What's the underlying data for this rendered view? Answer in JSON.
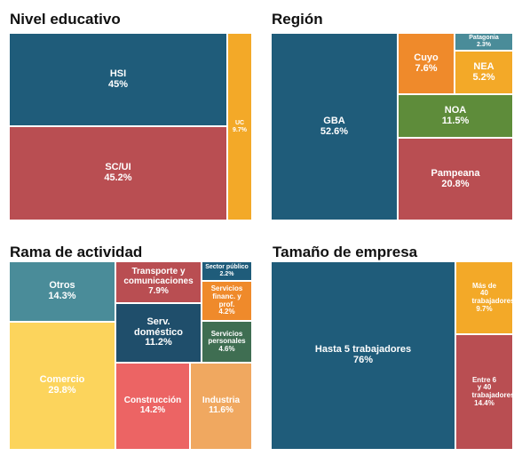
{
  "chart_data": [
    {
      "type": "treemap",
      "title": "Nivel educativo",
      "items": [
        {
          "label": "HSI",
          "value": 45,
          "display": "45%",
          "color": "#1f5c7a"
        },
        {
          "label": "SC/UI",
          "value": 45.2,
          "display": "45.2%",
          "color": "#b94e52"
        },
        {
          "label": "UC",
          "value": 9.7,
          "display": "9.7%",
          "color": "#f3a928"
        }
      ]
    },
    {
      "type": "treemap",
      "title": "Región",
      "items": [
        {
          "label": "GBA",
          "value": 52.6,
          "display": "52.6%",
          "color": "#1f5c7a"
        },
        {
          "label": "Cuyo",
          "value": 7.6,
          "display": "7.6%",
          "color": "#ef8a2b"
        },
        {
          "label": "Patagonia",
          "value": 2.3,
          "display": "2.3%",
          "color": "#4a8c99"
        },
        {
          "label": "NEA",
          "value": 5.2,
          "display": "5.2%",
          "color": "#f3a928"
        },
        {
          "label": "NOA",
          "value": 11.5,
          "display": "11.5%",
          "color": "#5e8c3a"
        },
        {
          "label": "Pampeana",
          "value": 20.8,
          "display": "20.8%",
          "color": "#b94e52"
        }
      ]
    },
    {
      "type": "treemap",
      "title": "Rama de actividad",
      "items": [
        {
          "label": "Otros",
          "value": 14.3,
          "display": "14.3%",
          "color": "#4a8c99"
        },
        {
          "label": "Comercio",
          "value": 29.8,
          "display": "29.8%",
          "color": "#fcd45c"
        },
        {
          "label": "Transporte y comunicaciones",
          "value": 7.9,
          "display": "7.9%",
          "color": "#b94e52"
        },
        {
          "label": "Serv. doméstico",
          "value": 11.2,
          "display": "11.2%",
          "color": "#1f4e6b"
        },
        {
          "label": "Construcción",
          "value": 14.2,
          "display": "14.2%",
          "color": "#ec6464"
        },
        {
          "label": "Sector público",
          "value": 2.2,
          "display": "2.2%",
          "color": "#1f5c7a"
        },
        {
          "label": "Servicios financ. y prof.",
          "value": 4.2,
          "display": "4.2%",
          "color": "#ef8a2b"
        },
        {
          "label": "Servicios personales",
          "value": 4.6,
          "display": "4.6%",
          "color": "#3f6e52"
        },
        {
          "label": "Industria",
          "value": 11.6,
          "display": "11.6%",
          "color": "#f0a860"
        }
      ]
    },
    {
      "type": "treemap",
      "title": "Tamaño de empresa",
      "items": [
        {
          "label": "Hasta 5 trabajadores",
          "value": 76,
          "display": "76%",
          "color": "#1f5c7a"
        },
        {
          "label": "Más de 40 trabajadores",
          "value": 9.7,
          "display": "9.7%",
          "color": "#f3a928"
        },
        {
          "label": "Entre 6 y 40 trabajadores",
          "value": 14.4,
          "display": "14.4%",
          "color": "#b94e52"
        }
      ]
    }
  ]
}
